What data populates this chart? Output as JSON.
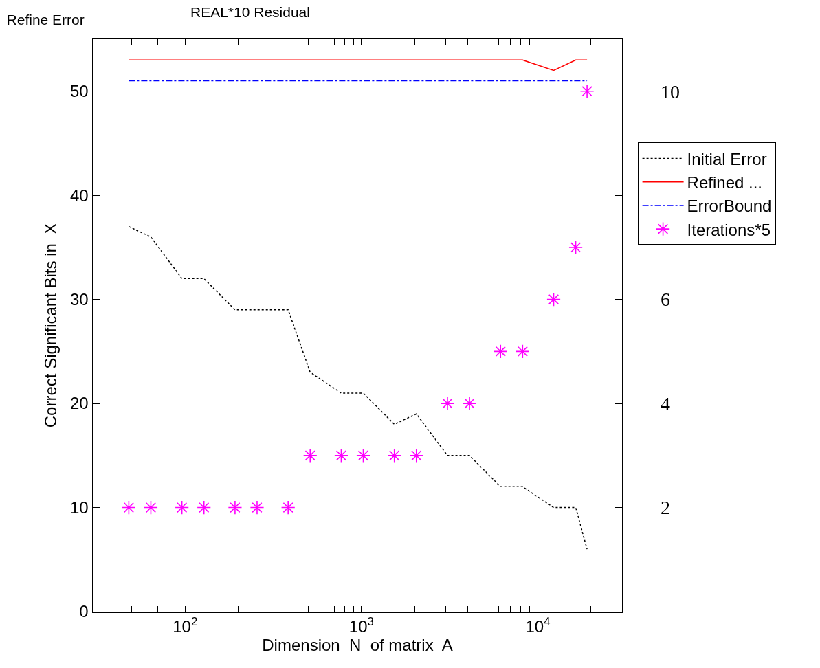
{
  "chart_data": {
    "type": "line",
    "title": "Refine Error",
    "subtitle": "REAL*10 Residual",
    "xlabel": "Dimension  N  of matrix  A",
    "ylabel": "Correct Significant Bits in  X",
    "x": [
      48,
      64,
      96,
      128,
      192,
      256,
      384,
      512,
      768,
      1024,
      1536,
      2048,
      3072,
      4096,
      6144,
      8192,
      12288,
      16384,
      19000
    ],
    "series": [
      {
        "name": "Initial Error",
        "color": "#000000",
        "line_style": "dotted",
        "marker": "none",
        "values": [
          37,
          36,
          32,
          32,
          29,
          29,
          29,
          23,
          21,
          21,
          18,
          19,
          15,
          15,
          12,
          12,
          10,
          10,
          6
        ]
      },
      {
        "name": "Refined ...",
        "color": "#ff0000",
        "line_style": "solid",
        "marker": "none",
        "values": [
          53,
          53,
          53,
          53,
          53,
          53,
          53,
          53,
          53,
          53,
          53,
          53,
          53,
          53,
          53,
          53,
          52,
          53,
          53
        ]
      },
      {
        "name": "ErrorBound",
        "color": "#0000ff",
        "line_style": "dashed",
        "marker": "none",
        "values": [
          51,
          51,
          51,
          51,
          51,
          51,
          51,
          51,
          51,
          51,
          51,
          51,
          51,
          51,
          51,
          51,
          51,
          51,
          51
        ]
      },
      {
        "name": "Iterations*5",
        "type": "scatter",
        "color": "#ff00ff",
        "marker": "cross",
        "values": [
          10,
          10,
          10,
          10,
          10,
          10,
          10,
          15,
          15,
          15,
          15,
          15,
          20,
          20,
          25,
          25,
          30,
          35,
          50
        ]
      }
    ],
    "log": "x",
    "xlim": [
      30,
      30000
    ],
    "xticks": [
      {
        "value": 40,
        "label": null
      },
      {
        "value": 50,
        "label": null
      },
      {
        "value": 60,
        "label": null
      },
      {
        "value": 70,
        "label": null
      },
      {
        "value": 80,
        "label": null
      },
      {
        "value": 90,
        "label": null
      },
      {
        "value": 100,
        "label": "10$^{2}$"
      },
      {
        "value": 200,
        "label": null
      },
      {
        "value": 300,
        "label": null
      },
      {
        "value": 400,
        "label": null
      },
      {
        "value": 500,
        "label": null
      },
      {
        "value": 600,
        "label": null
      },
      {
        "value": 700,
        "label": null
      },
      {
        "value": 800,
        "label": null
      },
      {
        "value": 900,
        "label": null
      },
      {
        "value": 1000,
        "label": "10$^{3}$"
      },
      {
        "value": 2000,
        "label": null
      },
      {
        "value": 3000,
        "label": null
      },
      {
        "value": 4000,
        "label": null
      },
      {
        "value": 5000,
        "label": null
      },
      {
        "value": 6000,
        "label": null
      },
      {
        "value": 7000,
        "label": null
      },
      {
        "value": 8000,
        "label": null
      },
      {
        "value": 9000,
        "label": null
      },
      {
        "value": 10000,
        "label": "10$^{4}$"
      },
      {
        "value": 20000,
        "label": null
      }
    ],
    "ylim": [
      0,
      55
    ],
    "yticks": [
      0,
      10,
      20,
      30,
      40,
      50
    ],
    "y2lim": [
      0,
      11
    ],
    "y2ticks": [
      2,
      4,
      6,
      10
    ],
    "grid": false,
    "legend": "right"
  }
}
